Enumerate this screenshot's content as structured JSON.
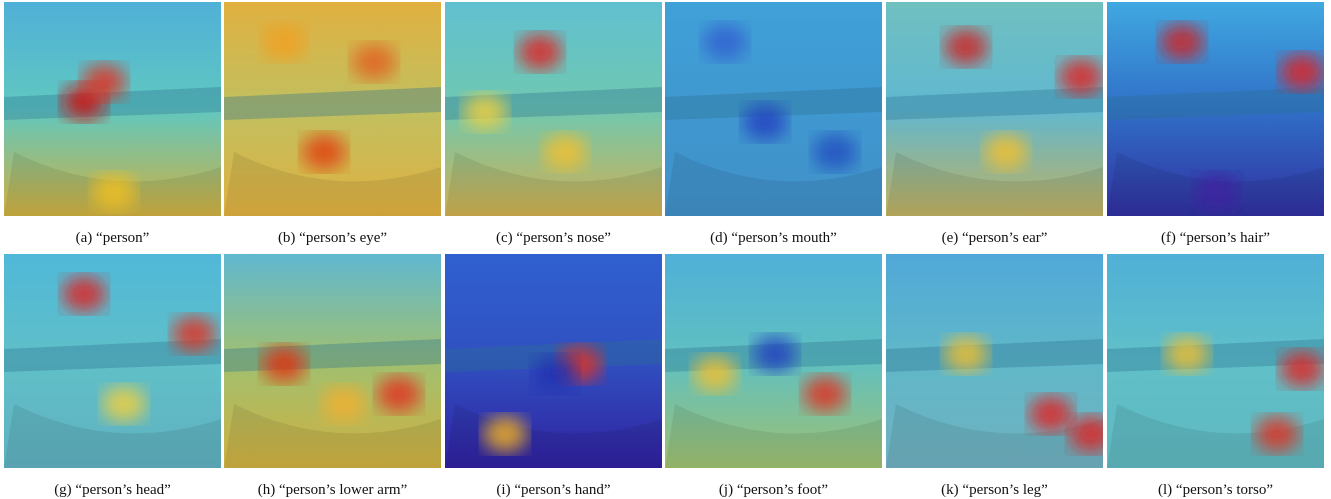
{
  "figure": {
    "panels": [
      {
        "caption": "(a) “person”"
      },
      {
        "caption": "(b) “person’s eye”"
      },
      {
        "caption": "(c) “person’s nose”"
      },
      {
        "caption": "(d) “person’s mouth”"
      },
      {
        "caption": "(e) “person’s ear”"
      },
      {
        "caption": "(f) “person’s hair”"
      },
      {
        "caption": "(g) “person’s head”"
      },
      {
        "caption": "(h) “person’s lower arm”"
      },
      {
        "caption": "(i) “person’s hand”"
      },
      {
        "caption": "(j) “person’s foot”"
      },
      {
        "caption": "(k) “person’s leg”"
      },
      {
        "caption": "(l) “person’s torso”"
      }
    ]
  }
}
